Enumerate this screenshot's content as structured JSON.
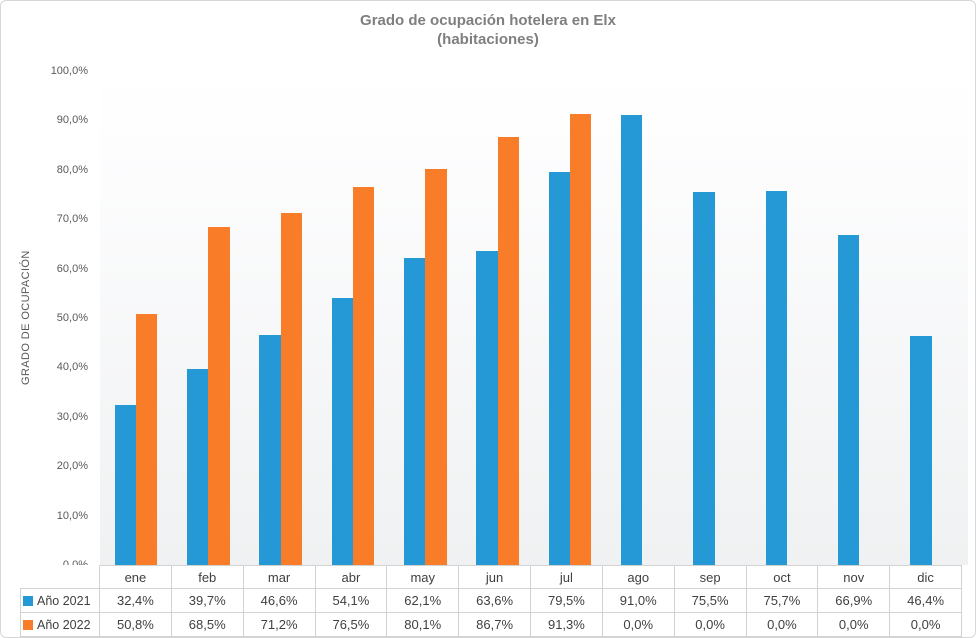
{
  "chart_data": {
    "type": "bar",
    "title": "Grado de ocupación hotelera en Elx (habitaciones)",
    "title_lines": {
      "line1": "Grado de ocupación hotelera en Elx",
      "line2": "(habitaciones)"
    },
    "ylabel": "GRADO DE OCUPACIÓN",
    "xlabel": "",
    "ylim": [
      0,
      100
    ],
    "grid": false,
    "legend_position": "data-table-left",
    "y_ticks": [
      "100,0%",
      "90,0%",
      "80,0%",
      "70,0%",
      "60,0%",
      "50,0%",
      "40,0%",
      "30,0%",
      "20,0%",
      "10,0%",
      "0,0%"
    ],
    "categories": [
      "ene",
      "feb",
      "mar",
      "abr",
      "may",
      "jun",
      "jul",
      "ago",
      "sep",
      "oct",
      "nov",
      "dic"
    ],
    "series": [
      {
        "name": "Año 2021",
        "color": "#2499D6",
        "values": [
          32.4,
          39.7,
          46.6,
          54.1,
          62.1,
          63.6,
          79.5,
          91.0,
          75.5,
          75.7,
          66.9,
          46.4
        ],
        "labels": [
          "32,4%",
          "39,7%",
          "46,6%",
          "54,1%",
          "62,1%",
          "63,6%",
          "79,5%",
          "91,0%",
          "75,5%",
          "75,7%",
          "66,9%",
          "46,4%"
        ]
      },
      {
        "name": "Año 2022",
        "color": "#F97D28",
        "values": [
          50.8,
          68.5,
          71.2,
          76.5,
          80.1,
          86.7,
          91.3,
          0.0,
          0.0,
          0.0,
          0.0,
          0.0
        ],
        "labels": [
          "50,8%",
          "68,5%",
          "71,2%",
          "76,5%",
          "80,1%",
          "86,7%",
          "91,3%",
          "0,0%",
          "0,0%",
          "0,0%",
          "0,0%",
          "0,0%"
        ]
      }
    ],
    "colors": {
      "accent_blue": "#2499D6",
      "accent_orange": "#F97D28",
      "title_gray": "#7F7F7F",
      "axis_text_gray": "#595959",
      "table_text": "#404040",
      "border_gray": "#D2D2D2"
    }
  }
}
